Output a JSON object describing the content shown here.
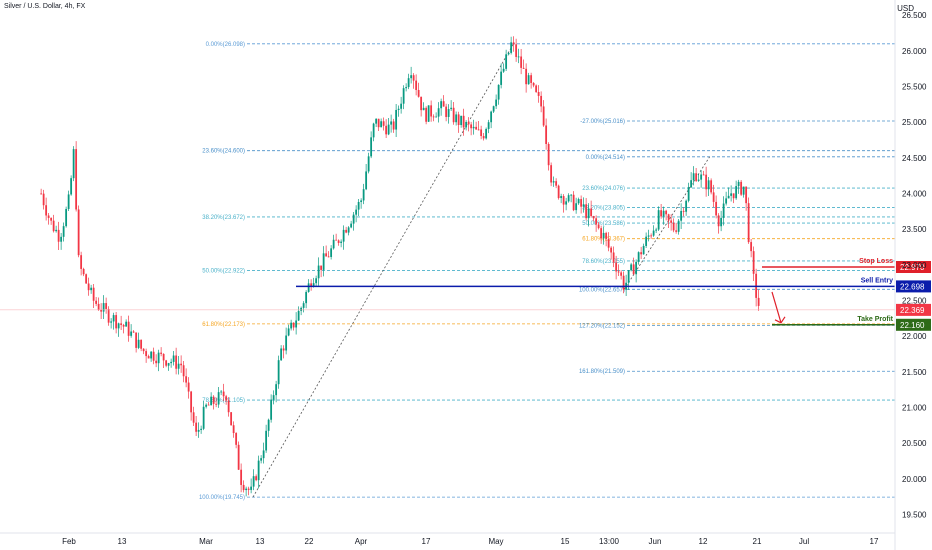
{
  "header": {
    "title": "Silver / U.S. Dollar, 4h, FX",
    "currency": "USD"
  },
  "chart_data": {
    "type": "candlestick",
    "symbol": "Silver / U.S. Dollar",
    "interval": "4h",
    "ylim": [
      19.3,
      26.6
    ],
    "y_ticks": [
      "26.500",
      "26.000",
      "25.500",
      "25.000",
      "24.500",
      "24.000",
      "23.500",
      "23.000",
      "22.500",
      "22.000",
      "21.500",
      "21.000",
      "20.500",
      "20.000",
      "19.500"
    ],
    "x_labels": [
      "Feb",
      "13",
      "Mar",
      "13",
      "22",
      "Apr",
      "17",
      "May",
      "15",
      "13:00",
      "Jun",
      "12",
      "21",
      "Jul",
      "17"
    ],
    "price_path": [
      {
        "t": "Jan 26",
        "p": 24.0
      },
      {
        "t": "Jan 28",
        "p": 23.6
      },
      {
        "t": "Jan 30",
        "p": 23.4
      },
      {
        "t": "Feb 1",
        "p": 23.9
      },
      {
        "t": "Feb 2",
        "p": 24.6
      },
      {
        "t": "Feb 3",
        "p": 23.0
      },
      {
        "t": "Feb 6",
        "p": 22.5
      },
      {
        "t": "Feb 9",
        "p": 22.3
      },
      {
        "t": "Feb 13",
        "p": 22.1
      },
      {
        "t": "Feb 16",
        "p": 21.8
      },
      {
        "t": "Feb 20",
        "p": 21.7
      },
      {
        "t": "Feb 24",
        "p": 21.6
      },
      {
        "t": "Feb 27",
        "p": 20.6
      },
      {
        "t": "Mar 1",
        "p": 21.0
      },
      {
        "t": "Mar 5",
        "p": 21.2
      },
      {
        "t": "Mar 8",
        "p": 20.0
      },
      {
        "t": "Mar 10",
        "p": 19.8
      },
      {
        "t": "Mar 13",
        "p": 20.6
      },
      {
        "t": "Mar 16",
        "p": 21.8
      },
      {
        "t": "Mar 20",
        "p": 22.4
      },
      {
        "t": "Mar 22",
        "p": 22.8
      },
      {
        "t": "Mar 27",
        "p": 23.3
      },
      {
        "t": "Apr 1",
        "p": 23.9
      },
      {
        "t": "Apr 4",
        "p": 25.0
      },
      {
        "t": "Apr 8",
        "p": 24.9
      },
      {
        "t": "Apr 12",
        "p": 25.8
      },
      {
        "t": "Apr 15",
        "p": 25.1
      },
      {
        "t": "Apr 19",
        "p": 25.2
      },
      {
        "t": "Apr 23",
        "p": 25.0
      },
      {
        "t": "Apr 28",
        "p": 24.8
      },
      {
        "t": "May 1",
        "p": 25.4
      },
      {
        "t": "May 4",
        "p": 26.1
      },
      {
        "t": "May 7",
        "p": 25.6
      },
      {
        "t": "May 10",
        "p": 25.2
      },
      {
        "t": "May 12",
        "p": 24.1
      },
      {
        "t": "May 15",
        "p": 23.9
      },
      {
        "t": "May 18",
        "p": 23.8
      },
      {
        "t": "May 22",
        "p": 23.4
      },
      {
        "t": "May 25",
        "p": 22.9
      },
      {
        "t": "May 26",
        "p": 22.7
      },
      {
        "t": "May 30",
        "p": 23.3
      },
      {
        "t": "Jun 2",
        "p": 23.7
      },
      {
        "t": "Jun 5",
        "p": 23.5
      },
      {
        "t": "Jun 9",
        "p": 24.3
      },
      {
        "t": "Jun 12",
        "p": 24.1
      },
      {
        "t": "Jun 14",
        "p": 23.6
      },
      {
        "t": "Jun 16",
        "p": 24.0
      },
      {
        "t": "Jun 19",
        "p": 24.1
      },
      {
        "t": "Jun 20",
        "p": 23.3
      },
      {
        "t": "Jun 21",
        "p": 22.7
      },
      {
        "t": "Jun 22",
        "p": 22.4
      }
    ],
    "fib_left": {
      "anchor_start": {
        "t": "Mar 10",
        "p": 19.745
      },
      "anchor_end": {
        "t": "May 4",
        "p": 26.098
      },
      "levels": [
        {
          "label": "0.00%(26.098)",
          "value": 26.098,
          "color": "#5b9bd5"
        },
        {
          "label": "23.60%(24.600)",
          "value": 24.6,
          "color": "#4a90c9"
        },
        {
          "label": "38.20%(23.672)",
          "value": 23.672,
          "color": "#4ab1c9"
        },
        {
          "label": "50.00%(22.922)",
          "value": 22.922,
          "color": "#4ab1c9"
        },
        {
          "label": "61.80%(22.173)",
          "value": 22.173,
          "color": "#f5a623"
        },
        {
          "label": "78.60%(21.105)",
          "value": 21.105,
          "color": "#4ab1c9"
        },
        {
          "label": "100.00%(19.745)",
          "value": 19.745,
          "color": "#5b9bd5"
        }
      ]
    },
    "fib_right": {
      "anchor_start": {
        "t": "May 26",
        "p": 22.657
      },
      "anchor_end": {
        "t": "Jun 12",
        "p": 24.514
      },
      "levels": [
        {
          "label": "-27.00%(25.016)",
          "value": 25.016,
          "color": "#4a90c9"
        },
        {
          "label": "0.00%(24.514)",
          "value": 24.514,
          "color": "#4a90c9"
        },
        {
          "label": "23.60%(24.076)",
          "value": 24.076,
          "color": "#4ab1c9"
        },
        {
          "label": "38.20%(23.805)",
          "value": 23.805,
          "color": "#4ab1c9"
        },
        {
          "label": "50.00%(23.586)",
          "value": 23.586,
          "color": "#4ab1c9"
        },
        {
          "label": "61.80%(23.367)",
          "value": 23.367,
          "color": "#f5a623"
        },
        {
          "label": "78.60%(23.055)",
          "value": 23.055,
          "color": "#4ab1c9"
        },
        {
          "label": "100.00%(22.657)",
          "value": 22.657,
          "color": "#4a90c9"
        },
        {
          "label": "127.20%(22.152)",
          "value": 22.152,
          "color": "#4a90c9"
        },
        {
          "label": "161.80%(21.509)",
          "value": 21.509,
          "color": "#4a90c9"
        }
      ]
    },
    "trade_levels": {
      "stop_loss": {
        "label": "Stop Loss",
        "value": "22.970",
        "color": "#e0202a"
      },
      "sell_entry": {
        "label": "Sell Entry",
        "value": "22.698",
        "color": "#0b1cab"
      },
      "current_price": {
        "value": "22.369",
        "color": "#f23645"
      },
      "take_profit": {
        "label": "Take Profit",
        "value": "22.160",
        "color": "#2e6b18"
      }
    }
  }
}
